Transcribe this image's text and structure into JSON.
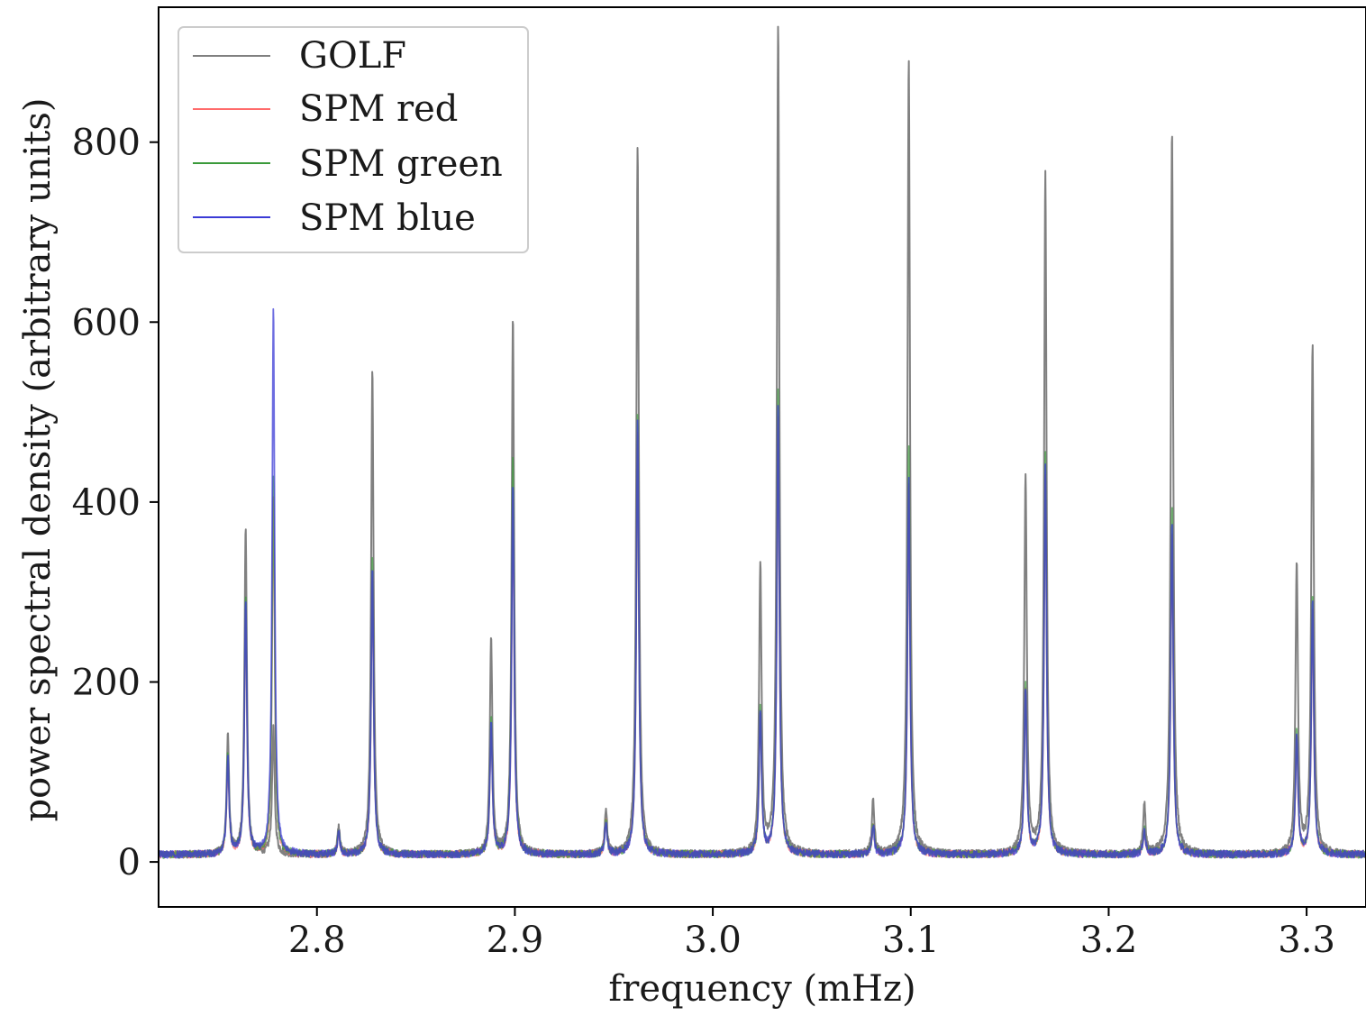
{
  "chart_data": {
    "type": "line",
    "title": "",
    "xlabel": "frequency (mHz)",
    "ylabel": "power spectral density (arbitrary units)",
    "xlim": [
      2.72,
      3.33
    ],
    "ylim": [
      -50,
      950
    ],
    "x_ticks": [
      2.8,
      2.9,
      3.0,
      3.1,
      3.2,
      3.3
    ],
    "x_tick_labels": [
      "2.8",
      "2.9",
      "3.0",
      "3.1",
      "3.2",
      "3.3"
    ],
    "y_ticks": [
      0,
      200,
      400,
      600,
      800
    ],
    "y_tick_labels": [
      "0",
      "200",
      "400",
      "600",
      "800"
    ],
    "grid": false,
    "legend_position": "top-left",
    "baseline": 8,
    "series": [
      {
        "name": "GOLF",
        "color": "#808080",
        "peaks": [
          [
            2.755,
            130
          ],
          [
            2.764,
            360
          ],
          [
            2.778,
            140
          ],
          [
            2.811,
            30
          ],
          [
            2.828,
            540
          ],
          [
            2.888,
            240
          ],
          [
            2.899,
            595
          ],
          [
            2.946,
            50
          ],
          [
            2.962,
            790
          ],
          [
            3.024,
            320
          ],
          [
            3.033,
            920
          ],
          [
            3.081,
            60
          ],
          [
            3.099,
            885
          ],
          [
            3.158,
            420
          ],
          [
            3.168,
            755
          ],
          [
            3.218,
            55
          ],
          [
            3.232,
            805
          ],
          [
            3.295,
            325
          ],
          [
            3.303,
            565
          ]
        ]
      },
      {
        "name": "SPM red",
        "color": "#ff6b6b",
        "peaks": [
          [
            2.755,
            100
          ],
          [
            2.764,
            270
          ],
          [
            2.778,
            400
          ],
          [
            2.811,
            22
          ],
          [
            2.828,
            310
          ],
          [
            2.888,
            140
          ],
          [
            2.899,
            400
          ],
          [
            2.946,
            35
          ],
          [
            2.962,
            470
          ],
          [
            3.024,
            155
          ],
          [
            3.033,
            490
          ],
          [
            3.081,
            30
          ],
          [
            3.099,
            410
          ],
          [
            3.158,
            180
          ],
          [
            3.168,
            425
          ],
          [
            3.218,
            26
          ],
          [
            3.232,
            360
          ],
          [
            3.295,
            130
          ],
          [
            3.303,
            270
          ]
        ]
      },
      {
        "name": "SPM green",
        "color": "#3a9a3a",
        "peaks": [
          [
            2.755,
            110
          ],
          [
            2.764,
            285
          ],
          [
            2.778,
            420
          ],
          [
            2.811,
            24
          ],
          [
            2.828,
            330
          ],
          [
            2.888,
            150
          ],
          [
            2.899,
            440
          ],
          [
            2.946,
            38
          ],
          [
            2.962,
            490
          ],
          [
            3.024,
            165
          ],
          [
            3.033,
            520
          ],
          [
            3.081,
            33
          ],
          [
            3.099,
            455
          ],
          [
            3.158,
            190
          ],
          [
            3.168,
            448
          ],
          [
            3.218,
            28
          ],
          [
            3.232,
            385
          ],
          [
            3.295,
            138
          ],
          [
            3.303,
            290
          ]
        ]
      },
      {
        "name": "SPM blue",
        "color": "#3b3bd6",
        "peaks": [
          [
            2.755,
            105
          ],
          [
            2.764,
            280
          ],
          [
            2.778,
            605
          ],
          [
            2.811,
            23
          ],
          [
            2.828,
            318
          ],
          [
            2.888,
            145
          ],
          [
            2.899,
            410
          ],
          [
            2.946,
            36
          ],
          [
            2.962,
            480
          ],
          [
            3.024,
            160
          ],
          [
            3.033,
            498
          ],
          [
            3.081,
            31
          ],
          [
            3.099,
            420
          ],
          [
            3.158,
            185
          ],
          [
            3.168,
            435
          ],
          [
            3.218,
            27
          ],
          [
            3.232,
            370
          ],
          [
            3.295,
            133
          ],
          [
            3.303,
            280
          ]
        ]
      }
    ]
  }
}
